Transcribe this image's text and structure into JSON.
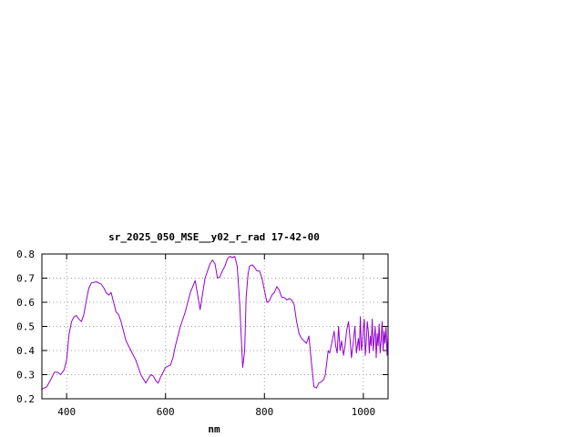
{
  "chart_data": {
    "type": "line",
    "title": "sr_2025_050_MSE__y02_r_rad 17-42-00",
    "xlabel": "nm",
    "ylabel": "",
    "xlim": [
      350,
      1050
    ],
    "ylim": [
      0.2,
      0.8
    ],
    "x_ticks": [
      400,
      600,
      800,
      1000
    ],
    "y_ticks": [
      0.2,
      0.3,
      0.4,
      0.5,
      0.6,
      0.7,
      0.8
    ],
    "x_tick_labels": [
      "400",
      "600",
      "800",
      "1000"
    ],
    "y_tick_labels": [
      "0.2",
      "0.3",
      "0.4",
      "0.5",
      "0.6",
      "0.7",
      "0.8"
    ],
    "grid": true,
    "grid_style": "dotted",
    "line_color": "#9400d3",
    "series": [
      {
        "x": [
          350,
          360,
          368,
          375,
          382,
          388,
          395,
          400,
          405,
          410,
          415,
          420,
          425,
          430,
          435,
          440,
          445,
          450,
          460,
          470,
          475,
          480,
          485,
          490,
          495,
          500,
          505,
          510,
          515,
          520,
          530,
          540,
          550,
          560,
          570,
          575,
          580,
          585,
          590,
          595,
          600,
          605,
          610,
          615,
          620,
          625,
          630,
          640,
          650,
          660,
          670,
          680,
          690,
          695,
          700,
          705,
          710,
          715,
          720,
          725,
          730,
          735,
          740,
          745,
          750,
          753,
          756,
          760,
          763,
          767,
          770,
          775,
          780,
          785,
          790,
          795,
          800,
          805,
          810,
          815,
          820,
          825,
          830,
          835,
          840,
          845,
          850,
          855,
          860,
          865,
          870,
          875,
          880,
          885,
          890,
          895,
          900,
          905,
          910,
          915,
          920,
          923,
          926,
          929,
          932,
          935,
          938,
          941,
          944,
          947,
          950,
          953,
          956,
          960,
          963,
          966,
          970,
          973,
          976,
          980,
          983,
          986,
          990,
          992,
          994,
          996,
          998,
          1000,
          1002,
          1004,
          1006,
          1008,
          1010,
          1012,
          1014,
          1016,
          1018,
          1020,
          1022,
          1024,
          1026,
          1028,
          1030,
          1032,
          1034,
          1036,
          1038,
          1040,
          1042,
          1044,
          1046,
          1048,
          1050
        ],
        "y": [
          0.24,
          0.25,
          0.28,
          0.31,
          0.31,
          0.3,
          0.32,
          0.36,
          0.47,
          0.52,
          0.54,
          0.545,
          0.53,
          0.52,
          0.55,
          0.61,
          0.66,
          0.68,
          0.685,
          0.675,
          0.66,
          0.64,
          0.63,
          0.64,
          0.6,
          0.56,
          0.55,
          0.52,
          0.48,
          0.44,
          0.4,
          0.36,
          0.3,
          0.265,
          0.3,
          0.295,
          0.275,
          0.265,
          0.29,
          0.31,
          0.33,
          0.335,
          0.34,
          0.37,
          0.42,
          0.46,
          0.5,
          0.56,
          0.64,
          0.69,
          0.57,
          0.7,
          0.76,
          0.775,
          0.76,
          0.7,
          0.705,
          0.73,
          0.75,
          0.78,
          0.79,
          0.785,
          0.79,
          0.75,
          0.6,
          0.46,
          0.33,
          0.4,
          0.62,
          0.72,
          0.75,
          0.755,
          0.745,
          0.73,
          0.73,
          0.7,
          0.65,
          0.6,
          0.605,
          0.63,
          0.64,
          0.665,
          0.65,
          0.62,
          0.62,
          0.61,
          0.615,
          0.61,
          0.59,
          0.52,
          0.47,
          0.45,
          0.44,
          0.43,
          0.46,
          0.35,
          0.25,
          0.245,
          0.265,
          0.27,
          0.28,
          0.3,
          0.35,
          0.4,
          0.39,
          0.42,
          0.45,
          0.48,
          0.42,
          0.39,
          0.5,
          0.4,
          0.44,
          0.38,
          0.42,
          0.48,
          0.52,
          0.45,
          0.37,
          0.44,
          0.5,
          0.39,
          0.45,
          0.4,
          0.54,
          0.4,
          0.43,
          0.49,
          0.53,
          0.38,
          0.44,
          0.52,
          0.48,
          0.39,
          0.46,
          0.42,
          0.53,
          0.4,
          0.45,
          0.5,
          0.37,
          0.47,
          0.42,
          0.51,
          0.39,
          0.44,
          0.52,
          0.4,
          0.48,
          0.43,
          0.5,
          0.38,
          0.46
        ]
      }
    ]
  }
}
